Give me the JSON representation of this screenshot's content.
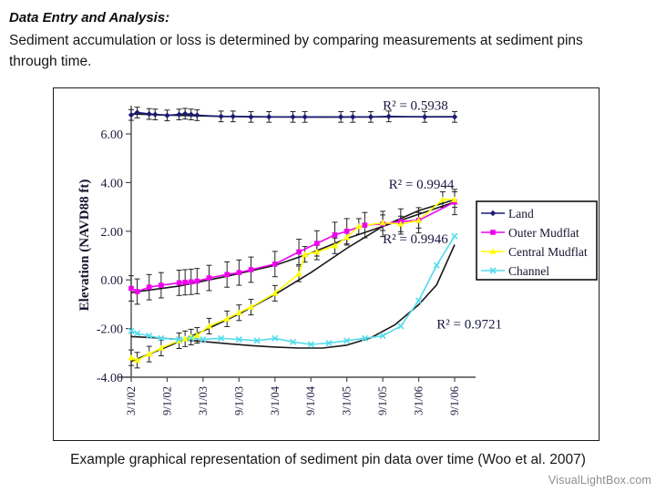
{
  "page": {
    "title": "Data Entry and Analysis:",
    "body_line1": "Sediment accumulation or loss is determined by comparing measurements at sediment pins",
    "body_line2": "through time.",
    "caption": "Example graphical representation of sediment pin data over time (Woo et al. 2007)",
    "watermark": "VisualLightBox.com"
  },
  "chart_data": {
    "type": "line",
    "title": "",
    "xlabel": "",
    "ylabel": "Elevation (NAVD88 ft)",
    "ylim": [
      -4,
      7.4
    ],
    "grid": false,
    "legend_position": "middle-right",
    "x_unit": "months since 3/1/02",
    "yticks": [
      {
        "value": 6,
        "label": "6.00"
      },
      {
        "value": 4,
        "label": "4.00"
      },
      {
        "value": 2,
        "label": "2.00"
      },
      {
        "value": 0,
        "label": "0.00"
      },
      {
        "value": -2,
        "label": "-2.00"
      },
      {
        "value": -4,
        "label": "-4.00"
      }
    ],
    "xticks": [
      {
        "month": 0,
        "label": "3/1/02"
      },
      {
        "month": 6,
        "label": "9/1/02"
      },
      {
        "month": 12,
        "label": "3/1/03"
      },
      {
        "month": 18,
        "label": "9/1/03"
      },
      {
        "month": 24,
        "label": "3/1/04"
      },
      {
        "month": 30,
        "label": "9/1/04"
      },
      {
        "month": 36,
        "label": "3/1/05"
      },
      {
        "month": 42,
        "label": "9/1/05"
      },
      {
        "month": 48,
        "label": "3/1/06"
      },
      {
        "month": 54,
        "label": "9/1/06"
      }
    ],
    "trendline_color": "#1a1a1a",
    "errorbar_color": "#222222",
    "series": [
      {
        "name": "Land",
        "color": "#1b1b72",
        "marker": "diamond",
        "err": 0.22,
        "r2_label": "R² = 0.5938",
        "r2_value": 0.5938,
        "r2_pos": [
          42,
          7.0
        ],
        "points": [
          [
            0,
            6.78
          ],
          [
            1,
            6.88
          ],
          [
            3,
            6.82
          ],
          [
            4,
            6.8
          ],
          [
            6,
            6.76
          ],
          [
            8,
            6.8
          ],
          [
            9,
            6.83
          ],
          [
            10,
            6.8
          ],
          [
            11,
            6.77
          ],
          [
            15,
            6.72
          ],
          [
            17,
            6.72
          ],
          [
            20,
            6.7
          ],
          [
            23,
            6.7
          ],
          [
            27,
            6.7
          ],
          [
            29,
            6.7
          ],
          [
            35,
            6.7
          ],
          [
            37,
            6.7
          ],
          [
            40,
            6.7
          ],
          [
            43,
            6.72
          ],
          [
            49,
            6.7
          ],
          [
            54,
            6.7
          ]
        ],
        "trend": [
          [
            0,
            6.82
          ],
          [
            8,
            6.76
          ],
          [
            16,
            6.72
          ],
          [
            24,
            6.7
          ],
          [
            32,
            6.69
          ],
          [
            40,
            6.7
          ],
          [
            54,
            6.71
          ]
        ]
      },
      {
        "name": "Outer Mudflat",
        "color": "#ee00ee",
        "marker": "square",
        "err": 0.52,
        "r2_label": "R² = 0.9944",
        "r2_value": 0.9944,
        "r2_pos": [
          43,
          3.75
        ],
        "points": [
          [
            0,
            -0.35
          ],
          [
            1,
            -0.48
          ],
          [
            3,
            -0.3
          ],
          [
            5,
            -0.22
          ],
          [
            8,
            -0.12
          ],
          [
            9,
            -0.1
          ],
          [
            10,
            -0.08
          ],
          [
            11,
            -0.05
          ],
          [
            13,
            0.08
          ],
          [
            16,
            0.22
          ],
          [
            18,
            0.3
          ],
          [
            20,
            0.42
          ],
          [
            24,
            0.65
          ],
          [
            28,
            1.15
          ],
          [
            31,
            1.5
          ],
          [
            34,
            1.85
          ],
          [
            36,
            2.0
          ],
          [
            39,
            2.25
          ],
          [
            42,
            2.3
          ],
          [
            45,
            2.4
          ],
          [
            48,
            2.45
          ],
          [
            54,
            3.2
          ]
        ],
        "trend": [
          [
            0,
            -0.52
          ],
          [
            8,
            -0.25
          ],
          [
            16,
            0.15
          ],
          [
            24,
            0.6
          ],
          [
            30,
            1.1
          ],
          [
            36,
            1.7
          ],
          [
            42,
            2.2
          ],
          [
            48,
            2.7
          ],
          [
            54,
            3.2
          ]
        ]
      },
      {
        "name": "Central Mudflat",
        "color": "#ffff00",
        "marker": "triangle",
        "err": 0.32,
        "r2_label": "R² = 0.9946",
        "r2_value": 0.9946,
        "r2_pos": [
          42,
          1.5
        ],
        "points": [
          [
            0,
            -3.2
          ],
          [
            1,
            -3.3
          ],
          [
            3,
            -3.05
          ],
          [
            5,
            -2.8
          ],
          [
            8,
            -2.5
          ],
          [
            9,
            -2.42
          ],
          [
            10,
            -2.35
          ],
          [
            11,
            -2.28
          ],
          [
            13,
            -1.9
          ],
          [
            16,
            -1.6
          ],
          [
            18,
            -1.35
          ],
          [
            20,
            -1.12
          ],
          [
            24,
            -0.55
          ],
          [
            28,
            0.25
          ],
          [
            29,
            1.05
          ],
          [
            31,
            1.15
          ],
          [
            34,
            1.4
          ],
          [
            36,
            1.75
          ],
          [
            38,
            2.2
          ],
          [
            42,
            2.35
          ],
          [
            45,
            2.3
          ],
          [
            48,
            2.45
          ],
          [
            52,
            3.3
          ],
          [
            54,
            3.3
          ]
        ],
        "trend": [
          [
            0,
            -3.35
          ],
          [
            6,
            -2.75
          ],
          [
            12,
            -2.1
          ],
          [
            18,
            -1.4
          ],
          [
            24,
            -0.6
          ],
          [
            30,
            0.3
          ],
          [
            36,
            1.3
          ],
          [
            42,
            2.2
          ],
          [
            48,
            2.85
          ],
          [
            54,
            3.3
          ]
        ]
      },
      {
        "name": "Channel",
        "color": "#55dcec",
        "marker": "x",
        "err": 0,
        "r2_label": "R² = 0.9721",
        "r2_value": 0.9721,
        "r2_pos": [
          51,
          -2.0
        ],
        "points": [
          [
            0,
            -2.1
          ],
          [
            1,
            -2.2
          ],
          [
            3,
            -2.3
          ],
          [
            5,
            -2.4
          ],
          [
            8,
            -2.45
          ],
          [
            10,
            -2.4
          ],
          [
            12,
            -2.45
          ],
          [
            15,
            -2.4
          ],
          [
            18,
            -2.45
          ],
          [
            21,
            -2.5
          ],
          [
            24,
            -2.4
          ],
          [
            27,
            -2.55
          ],
          [
            30,
            -2.65
          ],
          [
            33,
            -2.6
          ],
          [
            36,
            -2.5
          ],
          [
            39,
            -2.4
          ],
          [
            42,
            -2.3
          ],
          [
            45,
            -1.9
          ],
          [
            48,
            -0.85
          ],
          [
            51,
            0.6
          ],
          [
            54,
            1.8
          ]
        ],
        "trend": [
          [
            0,
            -2.33
          ],
          [
            4,
            -2.38
          ],
          [
            8,
            -2.45
          ],
          [
            12,
            -2.53
          ],
          [
            16,
            -2.62
          ],
          [
            20,
            -2.7
          ],
          [
            24,
            -2.76
          ],
          [
            28,
            -2.8
          ],
          [
            32,
            -2.8
          ],
          [
            36,
            -2.68
          ],
          [
            40,
            -2.38
          ],
          [
            44,
            -1.85
          ],
          [
            48,
            -1.02
          ],
          [
            51,
            -0.2
          ],
          [
            54,
            1.45
          ]
        ]
      }
    ]
  }
}
